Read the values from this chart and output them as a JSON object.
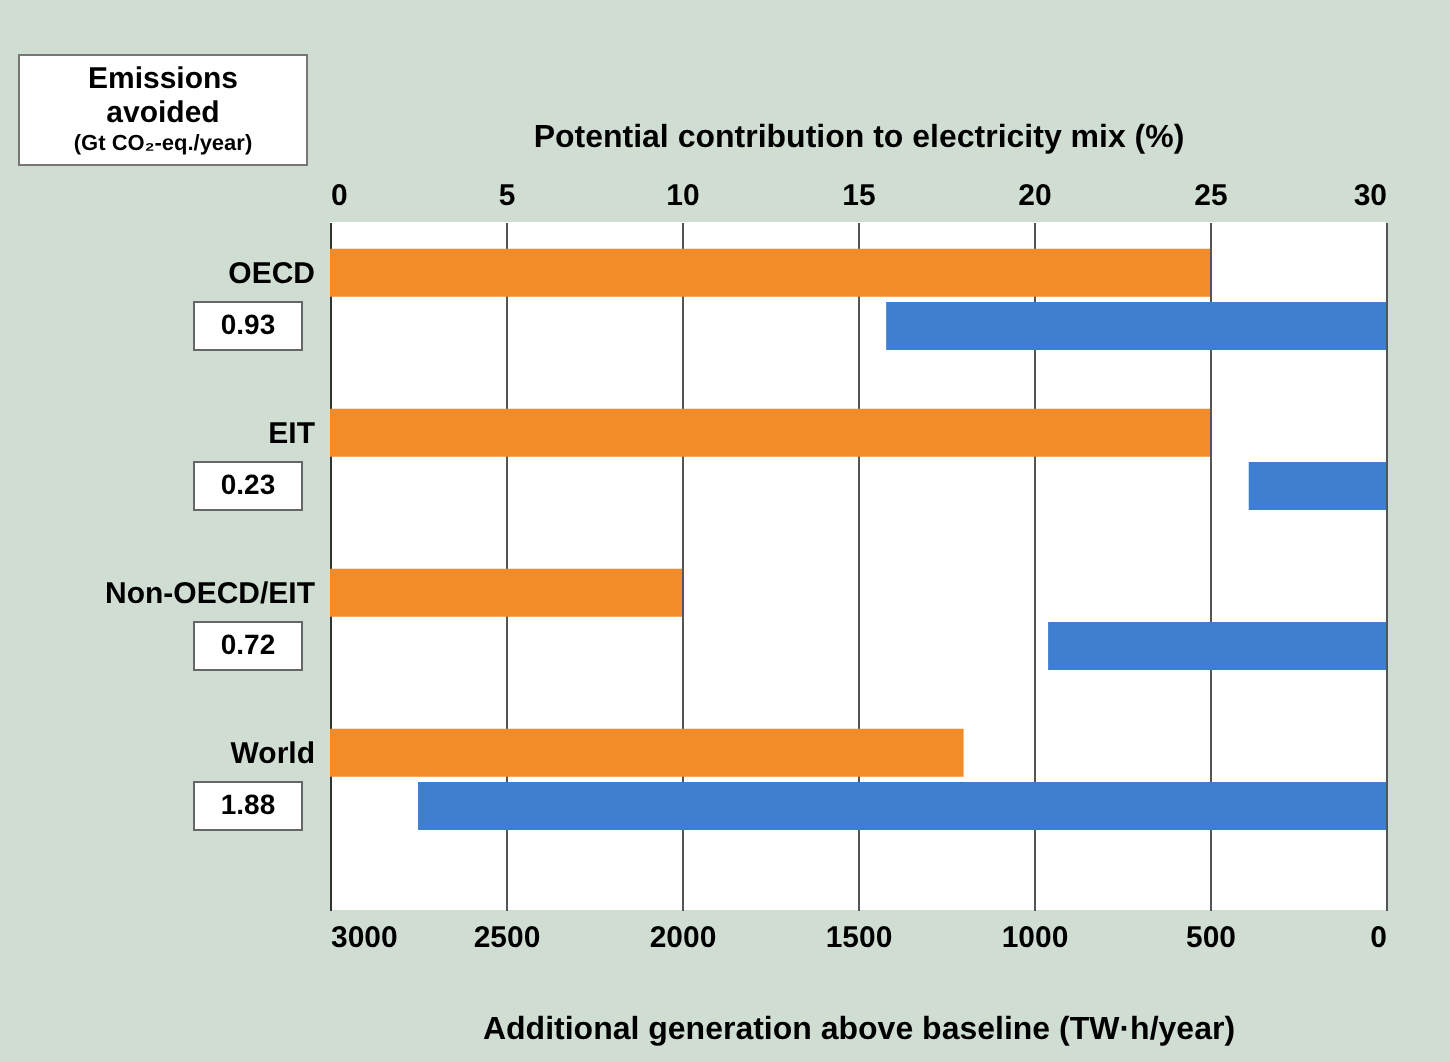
{
  "chart_data": {
    "type": "bar",
    "orientation": "horizontal",
    "categories": [
      "OECD",
      "EIT",
      "Non-OECD/EIT",
      "World"
    ],
    "series": [
      {
        "color": "#f28c28",
        "axis": "x2",
        "values": [
          25,
          25,
          10,
          18
        ]
      },
      {
        "color": "#3f7fcf",
        "values": [
          1420,
          390,
          960,
          2750
        ]
      }
    ],
    "xlabel": "Additional generation above baseline (TW·h/year)",
    "xlim": [
      3000,
      0
    ],
    "xticks": [
      3000,
      2500,
      2000,
      1500,
      1000,
      500,
      0
    ],
    "x2label": "Potential contribution to electricity mix (%)",
    "x2lim": [
      0,
      30
    ],
    "x2ticks": [
      0,
      5,
      10,
      15,
      20,
      25,
      30
    ],
    "ylabel": "Emissions avoided (Gt CO₂-eq./year)",
    "annotations": [
      "0.93",
      "0.23",
      "0.72",
      "1.88"
    ],
    "grid": true
  }
}
